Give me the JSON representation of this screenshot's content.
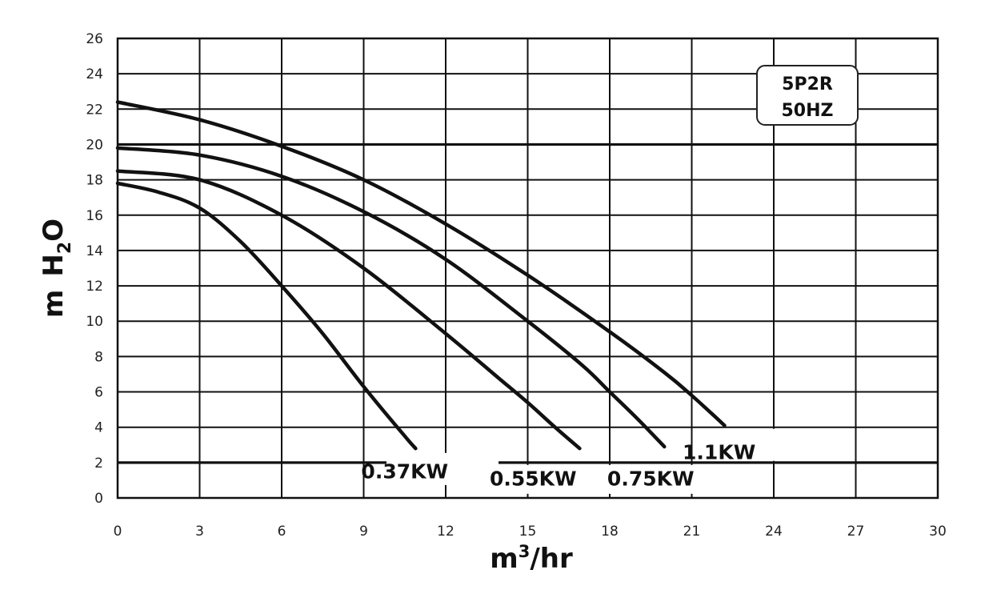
{
  "chart_data": {
    "type": "line",
    "title": "",
    "xlabel": "m3/hr",
    "xlabel_base": "m",
    "xlabel_sup": "3",
    "xlabel_rest": "/hr",
    "ylabel": "m H2O",
    "ylabel_m": "m",
    "ylabel_h": "H",
    "ylabel_sub": "2",
    "ylabel_o": "O",
    "xlim": [
      0,
      30
    ],
    "ylim": [
      0,
      26
    ],
    "x_ticks": [
      "0",
      "3",
      "6",
      "9",
      "12",
      "15",
      "18",
      "21",
      "24",
      "27",
      "30"
    ],
    "y_ticks": [
      "0",
      "2",
      "4",
      "6",
      "8",
      "10",
      "12",
      "14",
      "16",
      "18",
      "20",
      "22",
      "24",
      "26"
    ],
    "grid": true,
    "annotation_box": {
      "line1": "5P2R",
      "line2": "50HZ"
    },
    "series": [
      {
        "name": "0.37KW",
        "x": [
          0,
          1.5,
          3,
          4.5,
          6,
          7.5,
          9,
          10.5,
          10.9
        ],
        "y": [
          17.8,
          17.3,
          16.4,
          14.5,
          12.0,
          9.3,
          6.3,
          3.5,
          2.8
        ]
      },
      {
        "name": "0.55KW",
        "x": [
          0,
          3,
          6,
          9,
          12,
          14,
          15,
          16,
          16.9
        ],
        "y": [
          18.5,
          18.0,
          16.0,
          13.0,
          9.3,
          6.7,
          5.4,
          4.0,
          2.8
        ]
      },
      {
        "name": "0.75KW",
        "x": [
          0,
          3,
          6,
          9,
          12,
          15,
          17,
          18,
          19,
          20
        ],
        "y": [
          19.8,
          19.4,
          18.2,
          16.2,
          13.5,
          10.0,
          7.5,
          6.0,
          4.5,
          2.9
        ]
      },
      {
        "name": "1.1KW",
        "x": [
          0,
          3,
          6,
          9,
          12,
          15,
          18,
          20,
          21,
          22.2
        ],
        "y": [
          22.4,
          21.4,
          19.9,
          18.0,
          15.5,
          12.6,
          9.4,
          7.1,
          5.8,
          4.1
        ]
      }
    ],
    "labels": [
      {
        "text": "0.37KW",
        "x": 10.5,
        "y": 1.1
      },
      {
        "text": "0.55KW",
        "x": 15.2,
        "y": 0.7
      },
      {
        "text": "0.75KW",
        "x": 19.5,
        "y": 0.7
      },
      {
        "text": "1.1KW",
        "x": 22.0,
        "y": 2.2
      }
    ]
  }
}
